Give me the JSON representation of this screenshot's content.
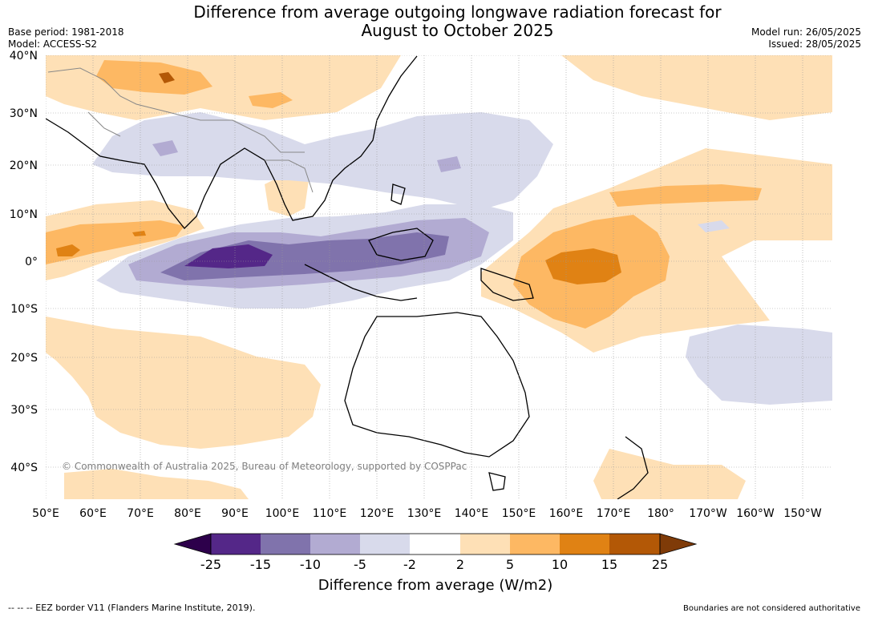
{
  "title": {
    "line1": "Difference from average outgoing longwave radiation forecast for",
    "line2": "August to October 2025"
  },
  "meta": {
    "base_period": "Base period: 1981-2018",
    "model": "Model: ACCESS-S2",
    "model_run": "Model run: 26/05/2025",
    "issued": "Issued: 28/05/2025"
  },
  "map": {
    "lat_labels": [
      "40°N",
      "30°N",
      "20°N",
      "10°N",
      "0°",
      "10°S",
      "20°S",
      "30°S",
      "40°S"
    ],
    "lon_labels": [
      "50°E",
      "60°E",
      "70°E",
      "80°E",
      "90°E",
      "100°E",
      "110°E",
      "120°E",
      "130°E",
      "140°E",
      "150°E",
      "160°E",
      "170°E",
      "180°",
      "170°W",
      "160°W",
      "150°W"
    ],
    "copyright": "© Commonwealth of Australia 2025, Bureau of Meteorology, supported by COSPPac"
  },
  "colorbar": {
    "ticks": [
      "-25",
      "-15",
      "-10",
      "-5",
      "-2",
      "2",
      "5",
      "10",
      "15",
      "25"
    ],
    "colors": {
      "below": "#2d004b",
      "bins": [
        "#542788",
        "#8073ac",
        "#b2abd2",
        "#d8daeb",
        "#ffffff",
        "#fee0b6",
        "#fdb863",
        "#e08214",
        "#b35806"
      ],
      "above": "#7f3b08"
    },
    "label": "Difference from average (W/m2)"
  },
  "footer": {
    "left": "--  --  -- EEZ border V11 (Flanders Marine Institute, 2019).",
    "right": "Boundaries are not considered authoritative"
  }
}
